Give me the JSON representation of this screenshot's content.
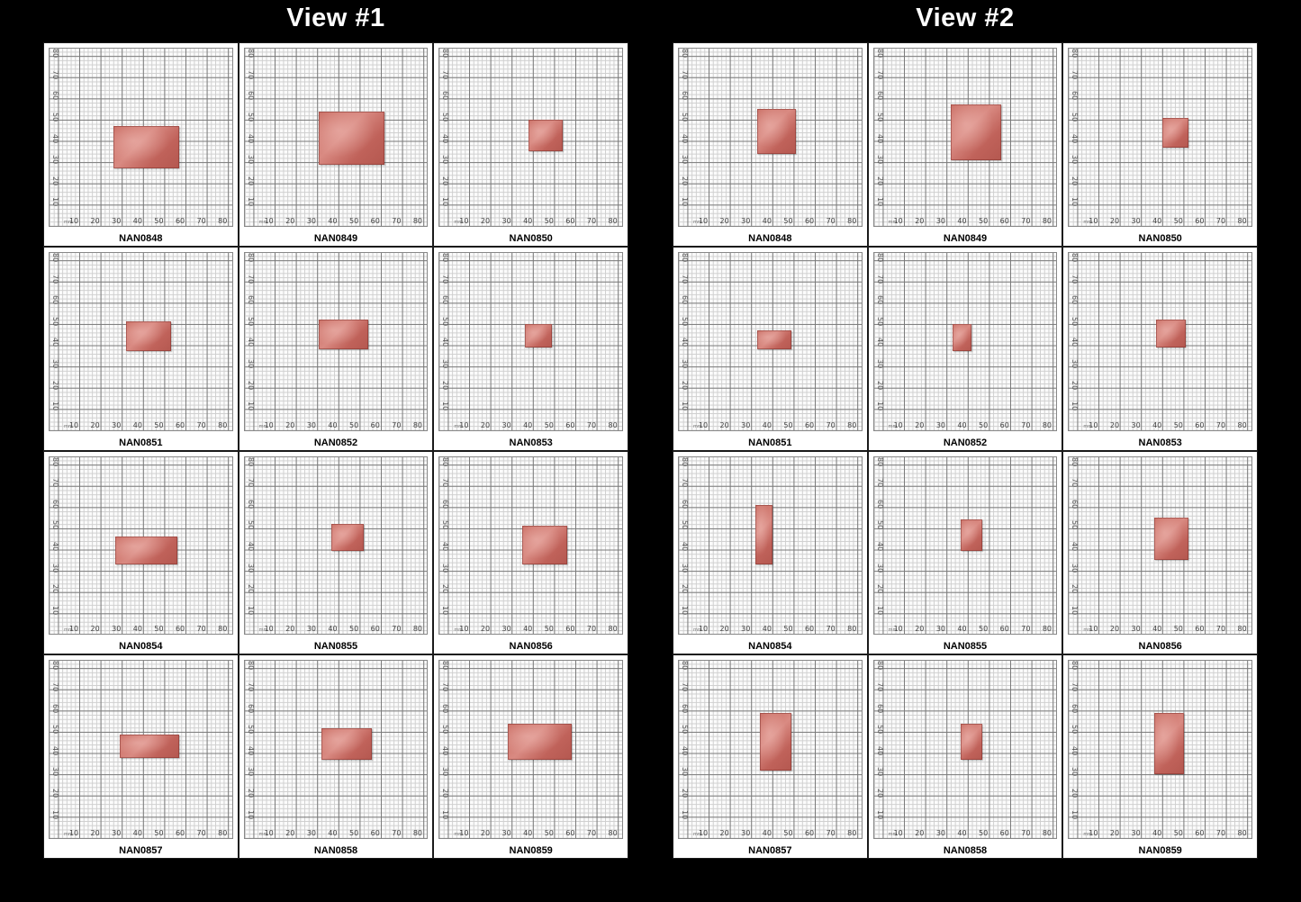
{
  "scale": {
    "unit": "mm",
    "x_ticks": [
      "10",
      "20",
      "30",
      "40",
      "50",
      "60",
      "70",
      "80"
    ],
    "y_ticks": [
      "10",
      "20",
      "30",
      "40",
      "50",
      "60",
      "70",
      "80"
    ]
  },
  "views": [
    {
      "title": "View #1",
      "samples": [
        {
          "id": "NAN0848",
          "x0": 26,
          "x1": 57,
          "y0": 23,
          "y1": 43
        },
        {
          "id": "NAN0849",
          "x0": 31,
          "x1": 62,
          "y0": 25,
          "y1": 50
        },
        {
          "id": "NAN0850",
          "x0": 38,
          "x1": 54,
          "y0": 31,
          "y1": 46
        },
        {
          "id": "NAN0851",
          "x0": 32,
          "x1": 53,
          "y0": 33,
          "y1": 47
        },
        {
          "id": "NAN0852",
          "x0": 31,
          "x1": 54,
          "y0": 34,
          "y1": 48
        },
        {
          "id": "NAN0853",
          "x0": 36,
          "x1": 49,
          "y0": 35,
          "y1": 46
        },
        {
          "id": "NAN0854",
          "x0": 27,
          "x1": 56,
          "y0": 29,
          "y1": 42
        },
        {
          "id": "NAN0855",
          "x0": 37,
          "x1": 52,
          "y0": 35,
          "y1": 48
        },
        {
          "id": "NAN0856",
          "x0": 35,
          "x1": 56,
          "y0": 29,
          "y1": 47
        },
        {
          "id": "NAN0857",
          "x0": 29,
          "x1": 57,
          "y0": 34,
          "y1": 45
        },
        {
          "id": "NAN0858",
          "x0": 32,
          "x1": 56,
          "y0": 33,
          "y1": 48
        },
        {
          "id": "NAN0859",
          "x0": 28,
          "x1": 58,
          "y0": 33,
          "y1": 50
        }
      ]
    },
    {
      "title": "View #2",
      "samples": [
        {
          "id": "NAN0848",
          "x0": 33,
          "x1": 51,
          "y0": 30,
          "y1": 51
        },
        {
          "id": "NAN0849",
          "x0": 32,
          "x1": 56,
          "y0": 27,
          "y1": 53
        },
        {
          "id": "NAN0850",
          "x0": 40,
          "x1": 52,
          "y0": 33,
          "y1": 47
        },
        {
          "id": "NAN0851",
          "x0": 33,
          "x1": 49,
          "y0": 34,
          "y1": 43
        },
        {
          "id": "NAN0852",
          "x0": 33,
          "x1": 42,
          "y0": 33,
          "y1": 46
        },
        {
          "id": "NAN0853",
          "x0": 37,
          "x1": 51,
          "y0": 35,
          "y1": 48
        },
        {
          "id": "NAN0854",
          "x0": 32,
          "x1": 40,
          "y0": 29,
          "y1": 57
        },
        {
          "id": "NAN0855",
          "x0": 37,
          "x1": 47,
          "y0": 35,
          "y1": 50
        },
        {
          "id": "NAN0856",
          "x0": 36,
          "x1": 52,
          "y0": 31,
          "y1": 51
        },
        {
          "id": "NAN0857",
          "x0": 34,
          "x1": 49,
          "y0": 28,
          "y1": 55
        },
        {
          "id": "NAN0858",
          "x0": 37,
          "x1": 47,
          "y0": 33,
          "y1": 50
        },
        {
          "id": "NAN0859",
          "x0": 36,
          "x1": 50,
          "y0": 26,
          "y1": 55
        }
      ]
    }
  ]
}
